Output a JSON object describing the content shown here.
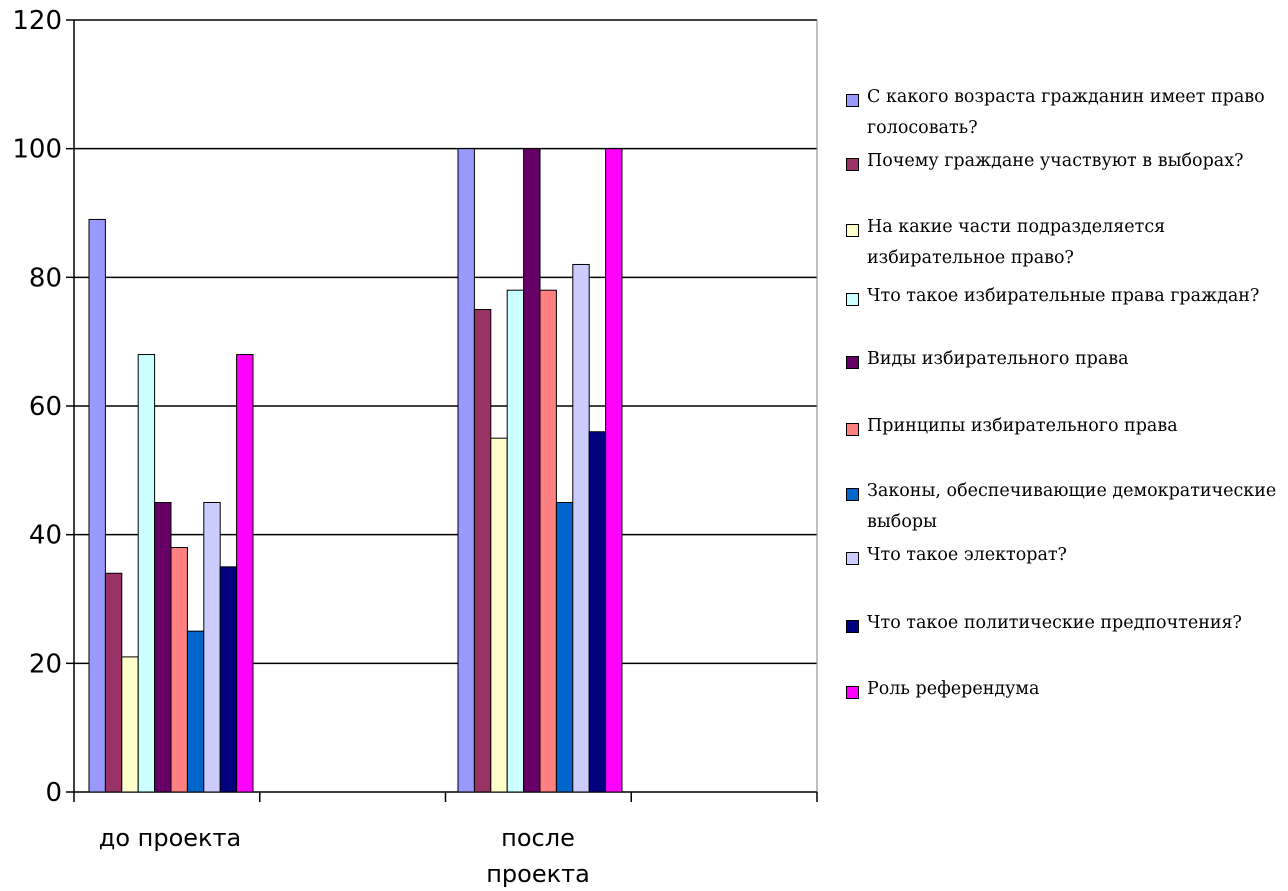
{
  "chart_data": {
    "type": "bar",
    "categories": [
      "до проекта",
      "после проекта"
    ],
    "ylim": [
      0,
      120
    ],
    "yticks": [
      0,
      20,
      40,
      60,
      80,
      100,
      120
    ],
    "grid": true,
    "legend_position": "right",
    "series": [
      {
        "name": "С какого возраста гражданин имеет право голосовать?",
        "color": "#9999ff",
        "values": [
          89,
          100
        ]
      },
      {
        "name": "Почему граждане участвуют в выборах?",
        "color": "#993366",
        "values": [
          34,
          75
        ]
      },
      {
        "name": "На какие части подразделяется избирательное право?",
        "color": "#ffffcc",
        "values": [
          21,
          55
        ]
      },
      {
        "name": "Что такое избирательные права граждан?",
        "color": "#ccffff",
        "values": [
          68,
          78
        ]
      },
      {
        "name": "Виды избирательного права",
        "color": "#660066",
        "values": [
          45,
          100
        ]
      },
      {
        "name": "Принципы избирательного права",
        "color": "#ff8080",
        "values": [
          38,
          78
        ]
      },
      {
        "name": "Законы, обеспечивающие демократические выборы",
        "color": "#0066cc",
        "values": [
          25,
          45
        ]
      },
      {
        "name": "Что такое электорат?",
        "color": "#ccccff",
        "values": [
          45,
          82
        ]
      },
      {
        "name": "Что такое политические предпочтения?",
        "color": "#000080",
        "values": [
          35,
          56
        ]
      },
      {
        "name": "Роль референдума",
        "color": "#ff00ff",
        "values": [
          68,
          100
        ]
      }
    ]
  }
}
